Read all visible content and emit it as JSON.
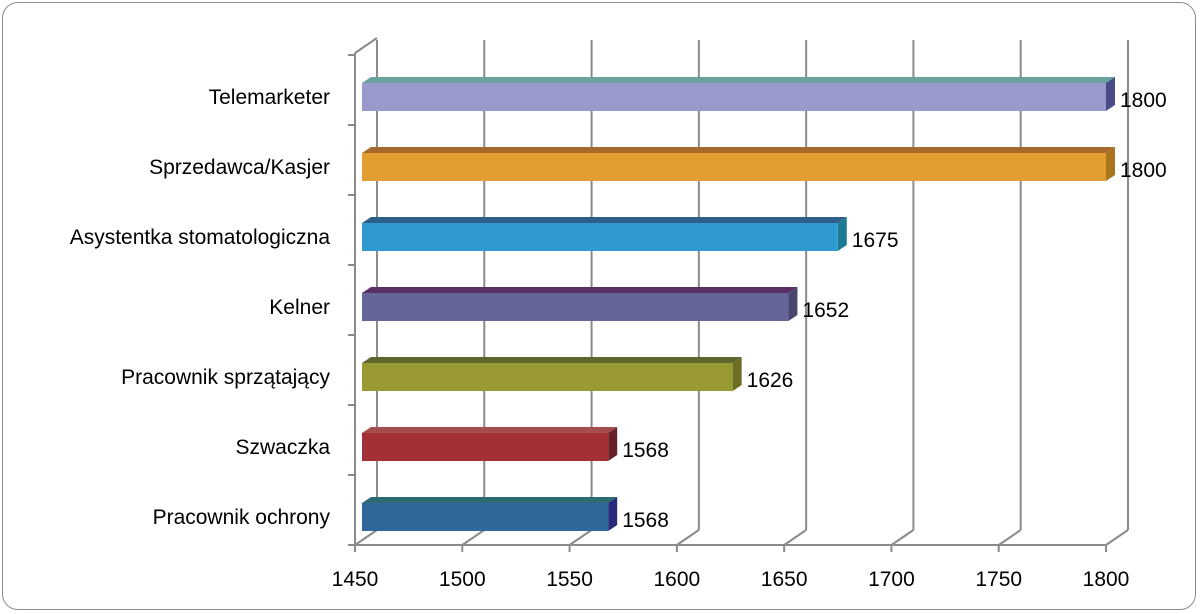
{
  "chart_data": {
    "type": "bar",
    "orientation": "horizontal",
    "style": "3d",
    "title": "",
    "xlabel": "",
    "ylabel": "",
    "xlim": [
      1450,
      1800
    ],
    "x_ticks": [
      1450,
      1500,
      1550,
      1600,
      1650,
      1700,
      1750,
      1800
    ],
    "grid": "vertical",
    "legend": "none",
    "categories": [
      "Telemarketer",
      "Sprzedawca/Kasjer",
      "Asystentka stomatologiczna",
      "Kelner",
      "Pracownik sprzątający",
      "Szwaczka",
      "Pracownik ochrony"
    ],
    "values": [
      1800,
      1800,
      1675,
      1652,
      1626,
      1568,
      1568
    ],
    "colors": [
      "#9999cc",
      "#e29e30",
      "#2e9ad0",
      "#65659a",
      "#9a9a35",
      "#a33035",
      "#31689c"
    ],
    "top_colors": [
      "#67a29e",
      "#a66a2e",
      "#2e5f8a",
      "#5a2f66",
      "#5e6630",
      "#a44d4d",
      "#2e6a72"
    ],
    "side_colors": [
      "#4b4b8c",
      "#a9761e",
      "#1d7a95",
      "#48476e",
      "#6d6d24",
      "#6a2028",
      "#262a78"
    ]
  }
}
